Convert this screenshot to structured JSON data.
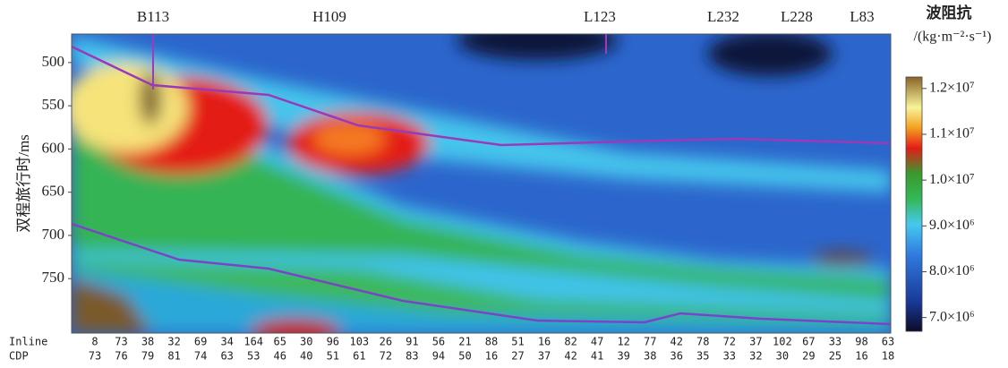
{
  "chart_data": {
    "type": "section",
    "ylabel": "双程旅行时/ms",
    "ylim": [
      467,
      813
    ],
    "yticks": [
      500,
      550,
      600,
      650,
      700,
      750
    ],
    "wells": [
      "B113",
      "H109",
      "L123",
      "L232",
      "L228",
      "L83"
    ],
    "row_labels": [
      "Inline",
      "CDP"
    ],
    "inline": [
      "8",
      "73",
      "38",
      "32",
      "69",
      "34",
      "164",
      "65",
      "30",
      "96",
      "103",
      "26",
      "91",
      "56",
      "21",
      "88",
      "51",
      "16",
      "82",
      "47",
      "12",
      "77",
      "42",
      "78",
      "72",
      "37",
      "102",
      "67",
      "33",
      "98",
      "63"
    ],
    "cdp": [
      "73",
      "76",
      "79",
      "81",
      "74",
      "63",
      "53",
      "46",
      "40",
      "51",
      "61",
      "72",
      "83",
      "94",
      "50",
      "16",
      "27",
      "37",
      "42",
      "41",
      "39",
      "38",
      "36",
      "35",
      "33",
      "32",
      "30",
      "29",
      "25",
      "16",
      "18"
    ],
    "colorbar": {
      "title": "波阻抗",
      "unit": "/(kg·m⁻²·s⁻¹)",
      "clim": [
        6700000,
        12250000
      ],
      "ticks": [
        {
          "value": 7000000,
          "label": "7.0×10⁶"
        },
        {
          "value": 8000000,
          "label": "8.0×10⁶"
        },
        {
          "value": 9000000,
          "label": "9.0×10⁶"
        },
        {
          "value": 10000000,
          "label": "1.0×10⁷"
        },
        {
          "value": 11000000,
          "label": "1.1×10⁷"
        },
        {
          "value": 12000000,
          "label": "1.2×10⁷"
        }
      ]
    }
  }
}
